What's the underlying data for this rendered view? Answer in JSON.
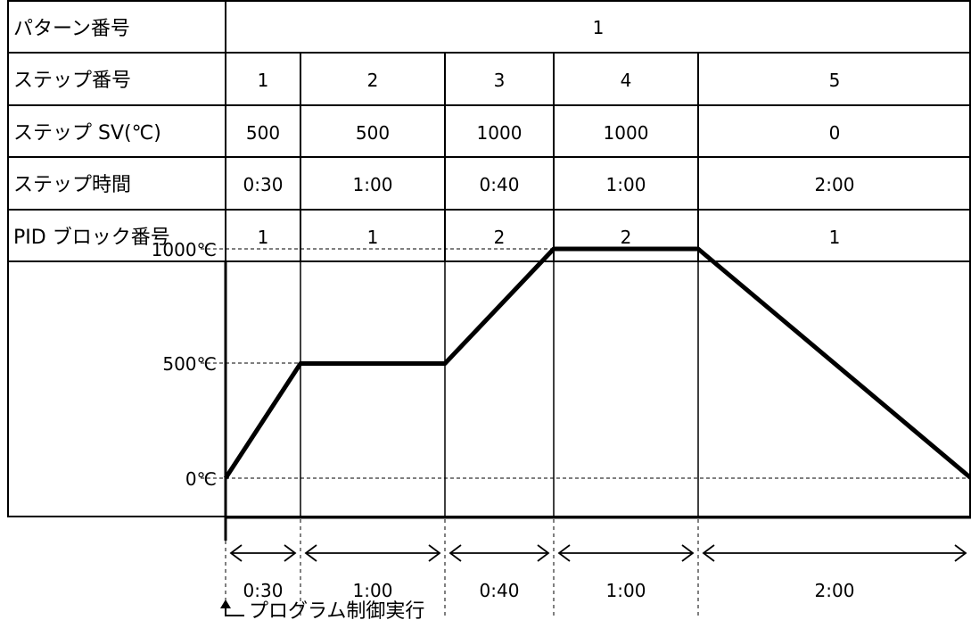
{
  "table": {
    "row_labels": {
      "pattern": "パターン番号",
      "step": "ステップ番号",
      "sv": "ステップ SV(℃)",
      "time": "ステップ時間",
      "pid": "PID ブロック番号"
    },
    "pattern_value": "1",
    "steps": [
      {
        "no": "1",
        "sv": "500",
        "time": "0:30",
        "pid": "1"
      },
      {
        "no": "2",
        "sv": "500",
        "time": "1:00",
        "pid": "1"
      },
      {
        "no": "3",
        "sv": "1000",
        "time": "0:40",
        "pid": "2"
      },
      {
        "no": "4",
        "sv": "1000",
        "time": "1:00",
        "pid": "2"
      },
      {
        "no": "5",
        "sv": "0",
        "time": "2:00",
        "pid": "1"
      }
    ]
  },
  "chart_data": {
    "type": "line",
    "y_tick_labels": [
      "1000℃",
      "500℃",
      "0℃"
    ],
    "y_ticks": [
      1000,
      500,
      0
    ],
    "ylim": [
      0,
      1000
    ],
    "x_unit": "min",
    "x_tick_labels": [
      "0:30",
      "1:00",
      "0:40",
      "1:00",
      "2:00"
    ],
    "step_durations_min": [
      30,
      60,
      40,
      60,
      120
    ],
    "points": [
      {
        "t": 0,
        "y": 0
      },
      {
        "t": 30,
        "y": 500
      },
      {
        "t": 90,
        "y": 500
      },
      {
        "t": 130,
        "y": 1000
      },
      {
        "t": 190,
        "y": 1000
      },
      {
        "t": 310,
        "y": 0
      }
    ]
  },
  "annotation": "プログラム制御実行"
}
